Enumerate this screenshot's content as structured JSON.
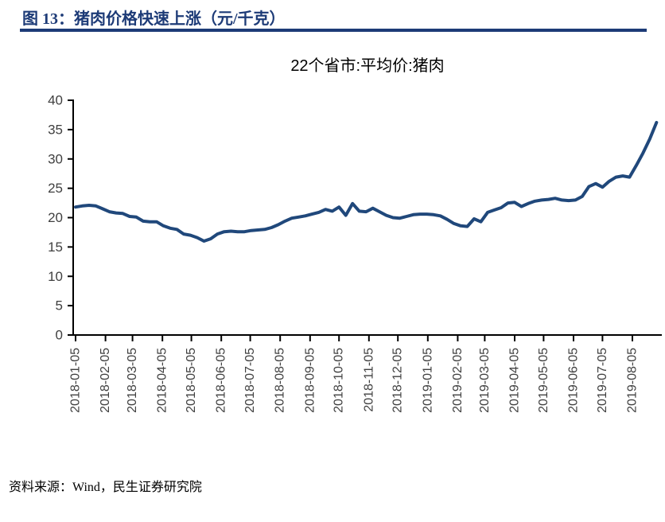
{
  "figure": {
    "caption": "图 13：猪肉价格快速上涨（元/千克）"
  },
  "source": {
    "text": "资料来源：Wind，民生证券研究院"
  },
  "colors": {
    "accent_navy": "#1d3b77",
    "line_color": "#20487b",
    "axis_color": "#000000",
    "tick_label_color": "#404040"
  },
  "chart_data": {
    "type": "line",
    "title": "22个省市:平均价:猪肉",
    "unit": "元/千克",
    "grid": false,
    "legend": "none",
    "ylim": [
      0,
      40
    ],
    "y_ticks": [
      0,
      5,
      10,
      15,
      20,
      25,
      30,
      35,
      40
    ],
    "x_tick_labels": [
      "2018-01-05",
      "2018-02-05",
      "2018-03-05",
      "2018-04-05",
      "2018-05-05",
      "2018-06-05",
      "2018-07-05",
      "2018-08-05",
      "2018-09-05",
      "2018-10-05",
      "2018-11-05",
      "2018-12-05",
      "2019-01-05",
      "2019-02-05",
      "2019-03-05",
      "2019-04-05",
      "2019-05-05",
      "2019-06-05",
      "2019-07-05",
      "2019-08-05"
    ],
    "x": [
      "2018-01-05",
      "2018-01-12",
      "2018-01-19",
      "2018-01-26",
      "2018-02-02",
      "2018-02-09",
      "2018-02-16",
      "2018-02-23",
      "2018-03-02",
      "2018-03-09",
      "2018-03-16",
      "2018-03-23",
      "2018-03-30",
      "2018-04-06",
      "2018-04-13",
      "2018-04-20",
      "2018-04-27",
      "2018-05-04",
      "2018-05-11",
      "2018-05-18",
      "2018-05-25",
      "2018-06-01",
      "2018-06-08",
      "2018-06-15",
      "2018-06-22",
      "2018-06-29",
      "2018-07-06",
      "2018-07-13",
      "2018-07-20",
      "2018-07-27",
      "2018-08-03",
      "2018-08-10",
      "2018-08-17",
      "2018-08-24",
      "2018-08-31",
      "2018-09-07",
      "2018-09-14",
      "2018-09-21",
      "2018-09-28",
      "2018-10-05",
      "2018-10-12",
      "2018-10-19",
      "2018-10-26",
      "2018-11-02",
      "2018-11-09",
      "2018-11-16",
      "2018-11-23",
      "2018-11-30",
      "2018-12-07",
      "2018-12-14",
      "2018-12-21",
      "2018-12-28",
      "2019-01-04",
      "2019-01-11",
      "2019-01-18",
      "2019-01-25",
      "2019-02-01",
      "2019-02-08",
      "2019-02-15",
      "2019-02-22",
      "2019-03-01",
      "2019-03-08",
      "2019-03-15",
      "2019-03-22",
      "2019-03-29",
      "2019-04-05",
      "2019-04-12",
      "2019-04-19",
      "2019-04-26",
      "2019-05-03",
      "2019-05-10",
      "2019-05-17",
      "2019-05-24",
      "2019-05-31",
      "2019-06-07",
      "2019-06-14",
      "2019-06-21",
      "2019-06-28",
      "2019-07-05",
      "2019-07-12",
      "2019-07-19",
      "2019-07-26",
      "2019-08-02",
      "2019-08-09",
      "2019-08-16",
      "2019-08-23",
      "2019-08-30"
    ],
    "values": [
      21.8,
      22.0,
      22.1,
      22.0,
      21.5,
      21.0,
      20.8,
      20.7,
      20.2,
      20.1,
      19.4,
      19.3,
      19.3,
      18.6,
      18.2,
      18.0,
      17.2,
      17.0,
      16.6,
      16.0,
      16.4,
      17.2,
      17.6,
      17.7,
      17.6,
      17.6,
      17.8,
      17.9,
      18.0,
      18.3,
      18.8,
      19.4,
      19.9,
      20.1,
      20.3,
      20.6,
      20.9,
      21.4,
      21.1,
      21.8,
      20.4,
      22.4,
      21.1,
      21.0,
      21.6,
      21.0,
      20.4,
      20.0,
      19.9,
      20.2,
      20.5,
      20.6,
      20.6,
      20.5,
      20.3,
      19.7,
      19.0,
      18.6,
      18.5,
      19.8,
      19.3,
      20.9,
      21.3,
      21.7,
      22.5,
      22.6,
      21.9,
      22.4,
      22.8,
      23.0,
      23.1,
      23.3,
      23.0,
      22.9,
      23.0,
      23.6,
      25.3,
      25.8,
      25.2,
      26.2,
      26.9,
      27.1,
      26.9,
      28.9,
      31.0,
      33.4,
      36.2
    ]
  }
}
